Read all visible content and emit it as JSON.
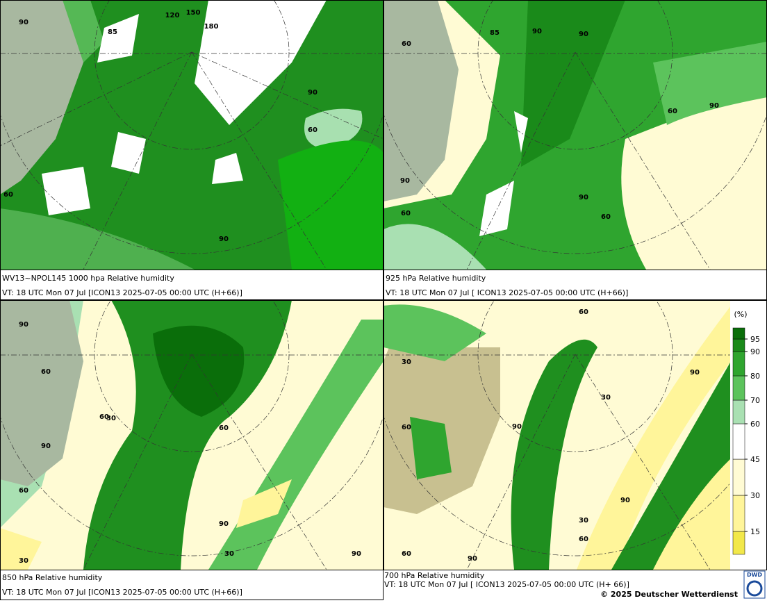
{
  "panels": [
    {
      "title": "WV13~NPOL145 1000 hpa Relative humidity",
      "valid": "VT: 18 UTC Mon  07 Jul [ICON13 2025-07-05 00:00 UTC  (H+66)]",
      "contour_labels": [
        90,
        60,
        90,
        60,
        90,
        85,
        120,
        150,
        180
      ]
    },
    {
      "title": "925 hPa Relative humidity",
      "valid": "VT: 18 UTC Mon  07 Jul [ ICON13 2025-07-05 00:00 UTC  (H+66)]",
      "contour_labels": [
        60,
        90,
        90,
        60,
        90,
        60,
        60,
        90,
        85,
        90
      ]
    },
    {
      "title": "850 hPa  Relative humidity",
      "valid": "VT: 18 UTC Mon  07 Jul [ICON13 2025-07-05 00:00 UTC  (H+66)]",
      "contour_labels": [
        90,
        60,
        30,
        90,
        60,
        60,
        90,
        30,
        90,
        30,
        60
      ]
    },
    {
      "title": "700 hPa Relative humidity",
      "valid": "VT: 18 UTC Mon  07 Jul [ ICON13 2025-07-05 00:00 UTC  (H+ 66)]",
      "contour_labels": [
        60,
        30,
        90,
        30,
        60,
        90,
        90,
        30,
        60,
        60,
        90
      ]
    }
  ],
  "legend": {
    "unit": "(%)",
    "levels": [
      15,
      30,
      45,
      60,
      70,
      80,
      90,
      95
    ],
    "colors": [
      "#f2e84a",
      "#fff59a",
      "#fffbd4",
      "#ffffff",
      "#a9e0b2",
      "#5cc35c",
      "#2fa52f",
      "#1a8a1a",
      "#0a6e0a"
    ]
  },
  "footer": {
    "copyright": "© 2025 Deutscher Wetterdienst",
    "logo": "DWD"
  }
}
